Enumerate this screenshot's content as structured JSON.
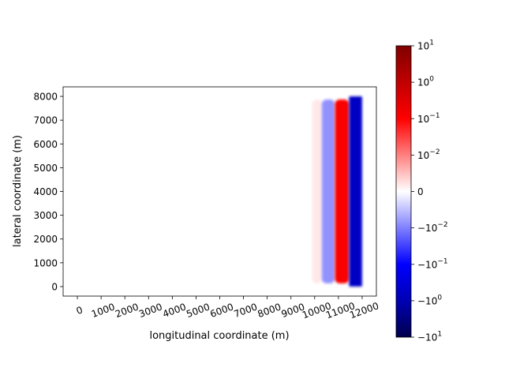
{
  "chart_data": {
    "type": "heatmap",
    "title": "",
    "xlabel": "longitudinal coordinate (m)",
    "ylabel": "lateral coordinate (m)",
    "xlim": [
      -600,
      12600
    ],
    "ylim": [
      -400,
      8400
    ],
    "x_ticks": [
      0,
      1000,
      2000,
      3000,
      4000,
      5000,
      6000,
      7000,
      8000,
      9000,
      10000,
      11000,
      12000
    ],
    "x_tick_labels": [
      "0",
      "1000",
      "2000",
      "3000",
      "4000",
      "5000",
      "6000",
      "7000",
      "8000",
      "9000",
      "10000",
      "11000",
      "12000"
    ],
    "y_ticks": [
      0,
      1000,
      2000,
      3000,
      4000,
      5000,
      6000,
      7000,
      8000
    ],
    "y_tick_labels": [
      "0",
      "1000",
      "2000",
      "3000",
      "4000",
      "5000",
      "6000",
      "7000",
      "8000"
    ],
    "field_extent": {
      "x": [
        9900,
        12000
      ],
      "y": [
        0,
        8000
      ]
    },
    "bands": [
      {
        "name": "faint-positive",
        "x_start": 9900,
        "x_end": 10300,
        "value": 0.003
      },
      {
        "name": "light-negative",
        "x_start": 10300,
        "x_end": 10850,
        "value": -0.01
      },
      {
        "name": "strong-positive",
        "x_start": 10850,
        "x_end": 11450,
        "value": 0.12
      },
      {
        "name": "strong-negative",
        "x_start": 11450,
        "x_end": 12000,
        "value": -0.6
      }
    ],
    "colorbar": {
      "colormap": "seismic",
      "scale": "symlog",
      "range": [
        -10,
        10
      ],
      "ticks": [
        {
          "value": 10,
          "base": "10",
          "exp": "1"
        },
        {
          "value": 1,
          "base": "10",
          "exp": "0"
        },
        {
          "value": 0.1,
          "base": "10",
          "exp": "−1"
        },
        {
          "value": 0.01,
          "base": "10",
          "exp": "−2"
        },
        {
          "value": 0,
          "base": "0",
          "exp": ""
        },
        {
          "value": -0.01,
          "base": "−10",
          "exp": "−2"
        },
        {
          "value": -0.1,
          "base": "−10",
          "exp": "−1"
        },
        {
          "value": -1,
          "base": "−10",
          "exp": "0"
        },
        {
          "value": -10,
          "base": "−10",
          "exp": "1"
        }
      ]
    }
  }
}
